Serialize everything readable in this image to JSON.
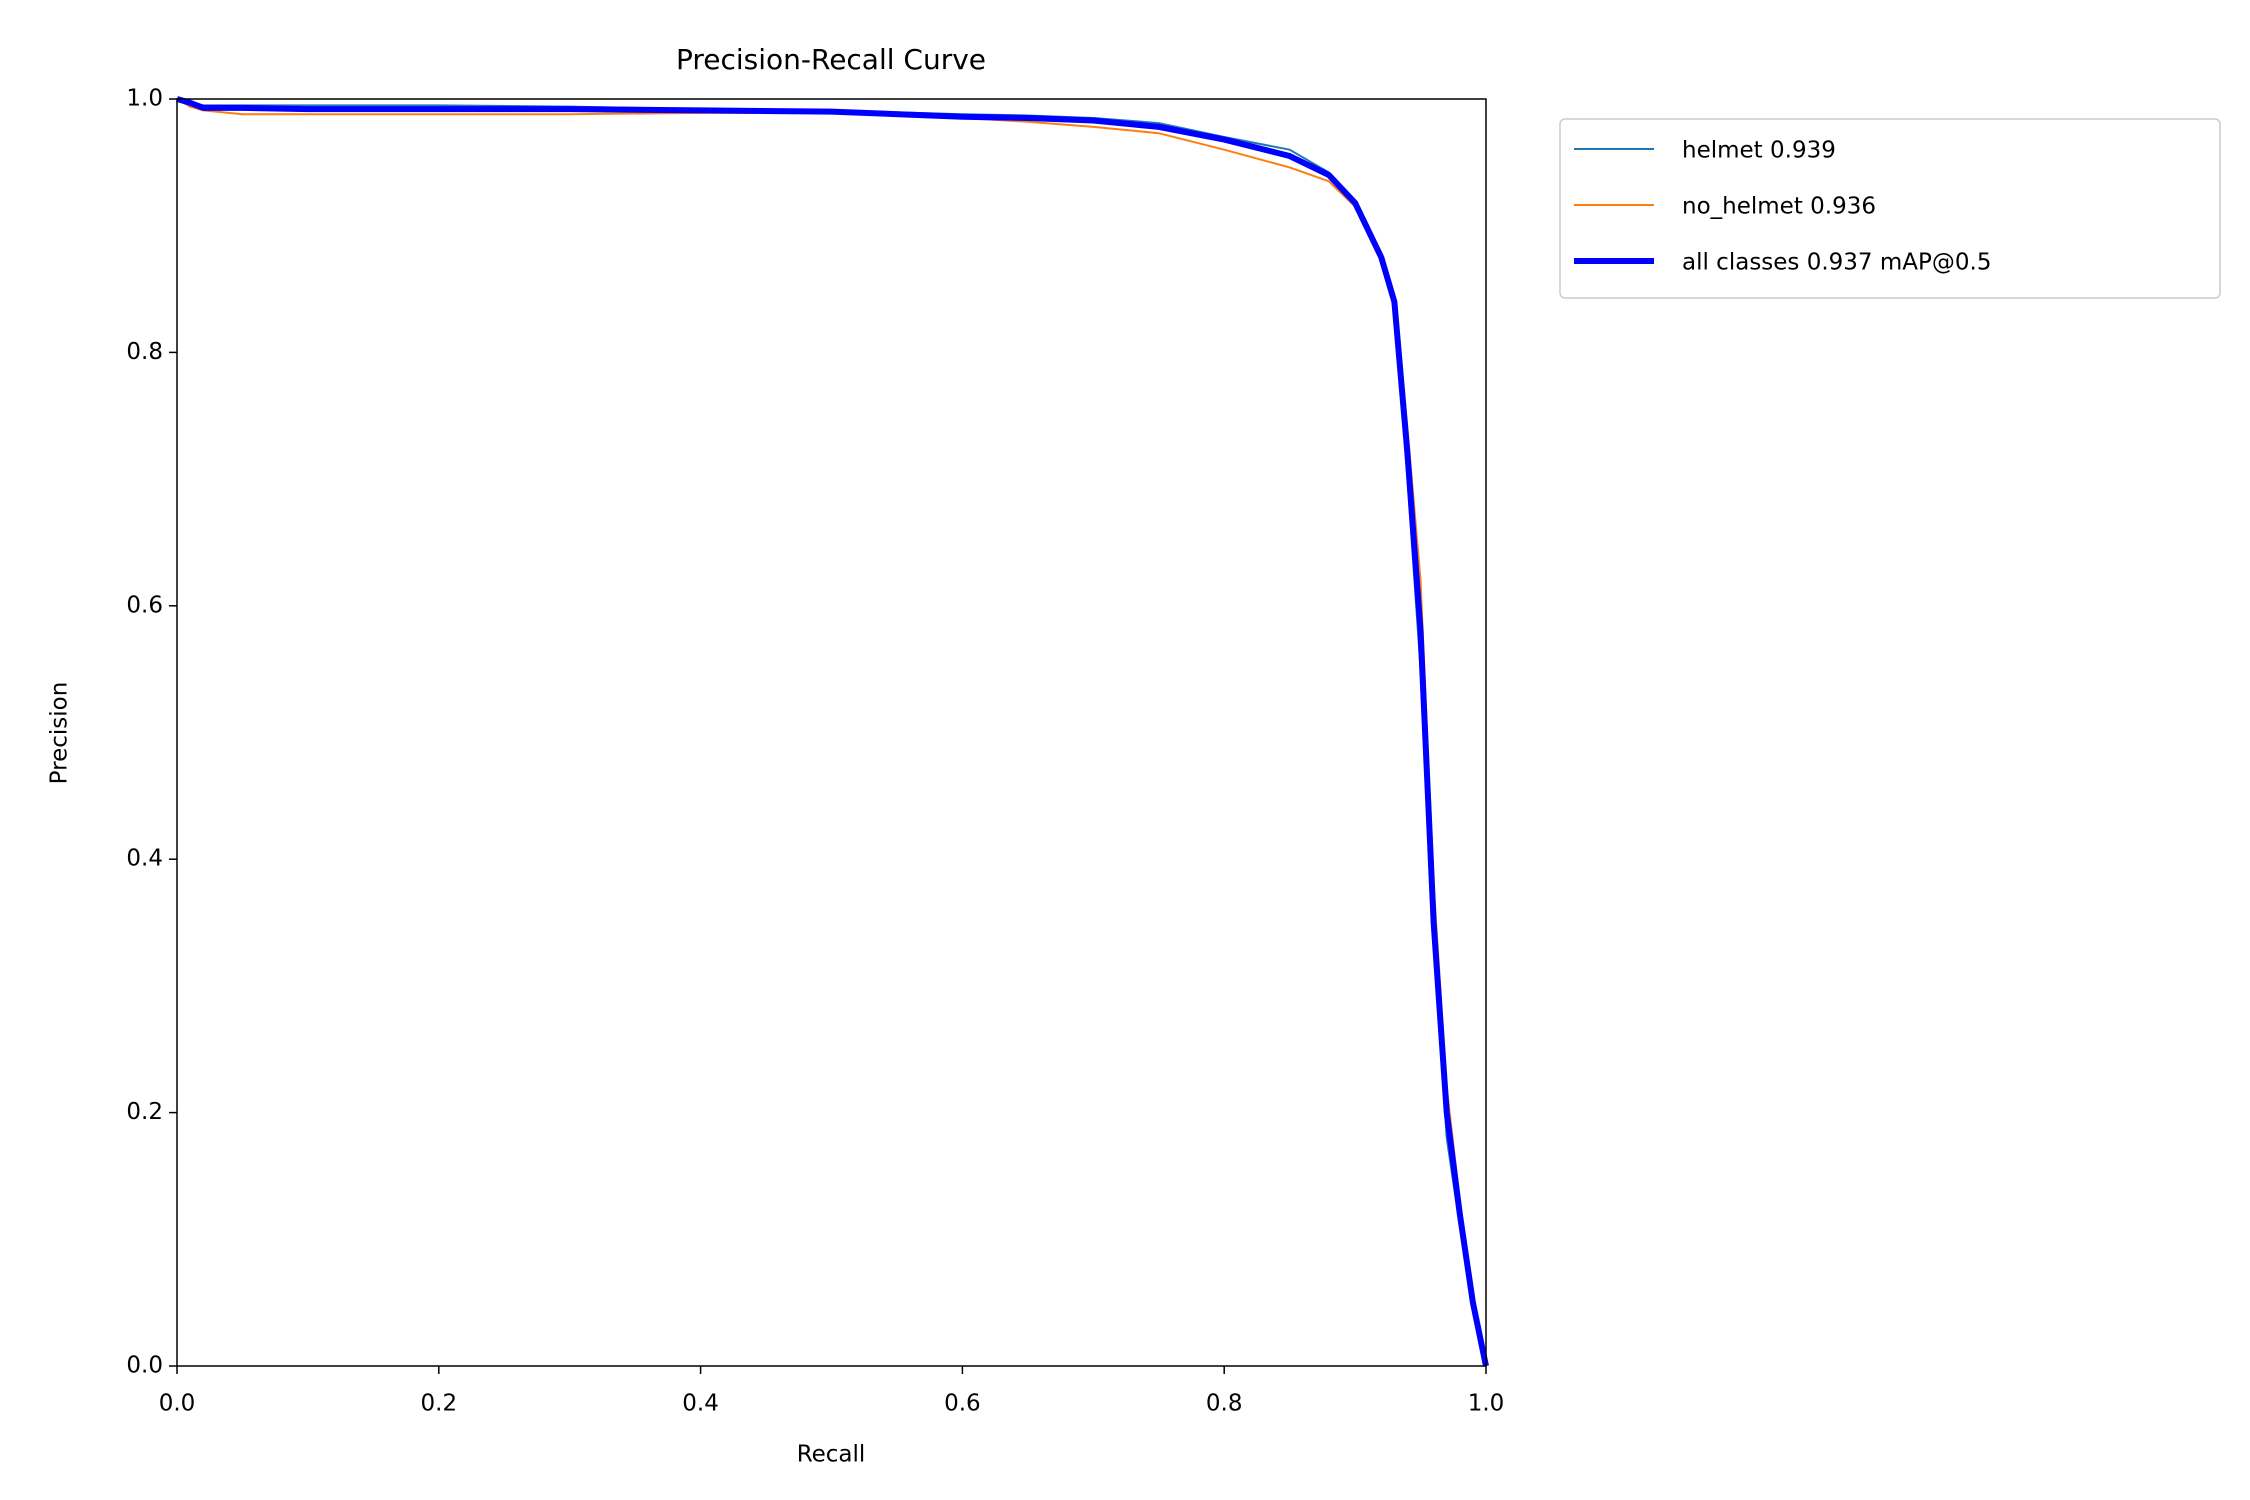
{
  "chart_data": {
    "type": "line",
    "title": "Precision-Recall Curve",
    "x_label": "Recall",
    "y_label": "Precision",
    "x": [
      0,
      0.01,
      0.02,
      0.05,
      0.1,
      0.2,
      0.3,
      0.4,
      0.5,
      0.6,
      0.65,
      0.7,
      0.75,
      0.8,
      0.85,
      0.88,
      0.9,
      0.92,
      0.93,
      0.94,
      0.95,
      0.96,
      0.97,
      0.98,
      0.99,
      1.0
    ],
    "series": [
      {
        "name": "helmet 0.939",
        "color": "#1f77b4",
        "values": [
          1.0,
          0.998,
          0.995,
          0.995,
          0.995,
          0.995,
          0.994,
          0.992,
          0.991,
          0.988,
          0.987,
          0.985,
          0.981,
          0.97,
          0.96,
          0.942,
          0.918,
          0.873,
          0.84,
          0.7,
          0.55,
          0.33,
          0.18,
          0.11,
          0.05,
          0.0
        ]
      },
      {
        "name": "no_helmet 0.936",
        "color": "#ff7f0e",
        "values": [
          1.0,
          0.994,
          0.991,
          0.988,
          0.988,
          0.988,
          0.988,
          0.989,
          0.989,
          0.985,
          0.982,
          0.978,
          0.973,
          0.96,
          0.946,
          0.935,
          0.915,
          0.875,
          0.845,
          0.74,
          0.62,
          0.38,
          0.22,
          0.13,
          0.05,
          0.0
        ]
      },
      {
        "name": "all classes 0.937 mAP@0.5",
        "color": "#0000ff",
        "values": [
          1.0,
          0.997,
          0.993,
          0.993,
          0.992,
          0.992,
          0.992,
          0.991,
          0.99,
          0.986,
          0.985,
          0.983,
          0.978,
          0.968,
          0.955,
          0.94,
          0.918,
          0.875,
          0.84,
          0.72,
          0.58,
          0.35,
          0.2,
          0.12,
          0.05,
          0.0
        ]
      }
    ],
    "xlim": [
      0,
      1
    ],
    "ylim": [
      0,
      1
    ],
    "xticks": [
      {
        "value": 0,
        "label": "0.0"
      },
      0.2,
      0.4,
      0.6,
      0.8,
      {
        "value": 1,
        "label": "1.0"
      }
    ],
    "yticks": [
      {
        "value": 0,
        "label": "0.0"
      },
      0.2,
      0.4,
      0.6,
      0.8,
      {
        "value": 1,
        "label": "1.0"
      }
    ],
    "grid": false,
    "legend": "outside upper right"
  }
}
